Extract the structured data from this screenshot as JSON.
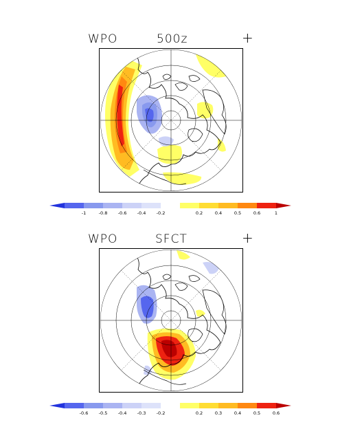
{
  "panels": [
    {
      "index": "WPO",
      "variable": "500z",
      "sign": "+",
      "colorbar": {
        "labels": [
          "-1",
          "-0.8",
          "-0.6",
          "-0.4",
          "-0.2",
          "0.2",
          "0.4",
          "0.5",
          "0.6",
          "1"
        ],
        "colors": [
          "#2233dd",
          "#5566ee",
          "#8899ee",
          "#aab4f2",
          "#ccd2f7",
          "#dde2fa",
          "#ffffff",
          "#ffff66",
          "#ffdd33",
          "#ffbb22",
          "#ff8811",
          "#ee2211",
          "#bb0000"
        ]
      }
    },
    {
      "index": "WPO",
      "variable": "SFCT",
      "sign": "+",
      "colorbar": {
        "labels": [
          "-0.6",
          "-0.5",
          "-0.4",
          "-0.3",
          "-0.2",
          "0.2",
          "0.3",
          "0.4",
          "0.5",
          "0.6"
        ],
        "colors": [
          "#2233dd",
          "#5566ee",
          "#8899ee",
          "#aab4f2",
          "#ccd2f7",
          "#dde2fa",
          "#ffffff",
          "#ffff66",
          "#ffdd33",
          "#ffbb22",
          "#ff8811",
          "#ee2211",
          "#bb0000"
        ]
      }
    }
  ]
}
